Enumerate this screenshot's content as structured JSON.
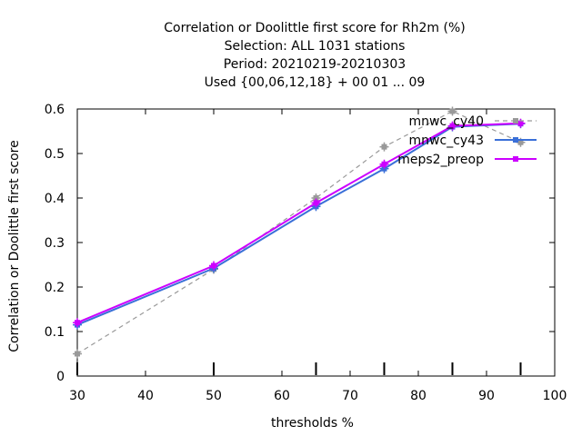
{
  "chart_data": {
    "type": "line",
    "title_lines": [
      "Correlation or Doolittle first score  for Rh2m (%)",
      "Selection: ALL   1031 stations",
      "Period: 20210219-20210303",
      "Used {00,06,12,18} + 00 01 ... 09"
    ],
    "xlabel": "thresholds %",
    "ylabel": "Correlation or Doolittle first score",
    "xlim": [
      30,
      100
    ],
    "ylim": [
      0,
      0.6
    ],
    "xticks": [
      30,
      40,
      50,
      60,
      70,
      80,
      90,
      100
    ],
    "yticks": [
      0,
      0.1,
      0.2,
      0.3,
      0.4,
      0.5,
      0.6
    ],
    "xtick_labels": [
      "30",
      "40",
      "50",
      "60",
      "70",
      "80",
      "90",
      "100"
    ],
    "ytick_labels": [
      "0",
      "0.1",
      "0.2",
      "0.3",
      "0.4",
      "0.5",
      "0.6"
    ],
    "threshold_markers": [
      30,
      50,
      65,
      75,
      85,
      95
    ],
    "legend_position": "top-right",
    "series": [
      {
        "name": "mnwc_cy40",
        "color": "#999999",
        "style": "dashed",
        "x": [
          30,
          50,
          65,
          75,
          85,
          95
        ],
        "y": [
          0.05,
          0.24,
          0.4,
          0.515,
          0.595,
          0.525
        ]
      },
      {
        "name": "mnwc_cy43",
        "color": "#3a6fd8",
        "style": "solid",
        "x": [
          30,
          50,
          65,
          75,
          85,
          95
        ],
        "y": [
          0.115,
          0.242,
          0.381,
          0.466,
          0.56,
          0.567
        ]
      },
      {
        "name": "meps2_preop",
        "color": "#cc00ff",
        "style": "solid",
        "x": [
          30,
          50,
          65,
          75,
          85,
          95
        ],
        "y": [
          0.12,
          0.248,
          0.389,
          0.476,
          0.562,
          0.568
        ]
      }
    ]
  }
}
